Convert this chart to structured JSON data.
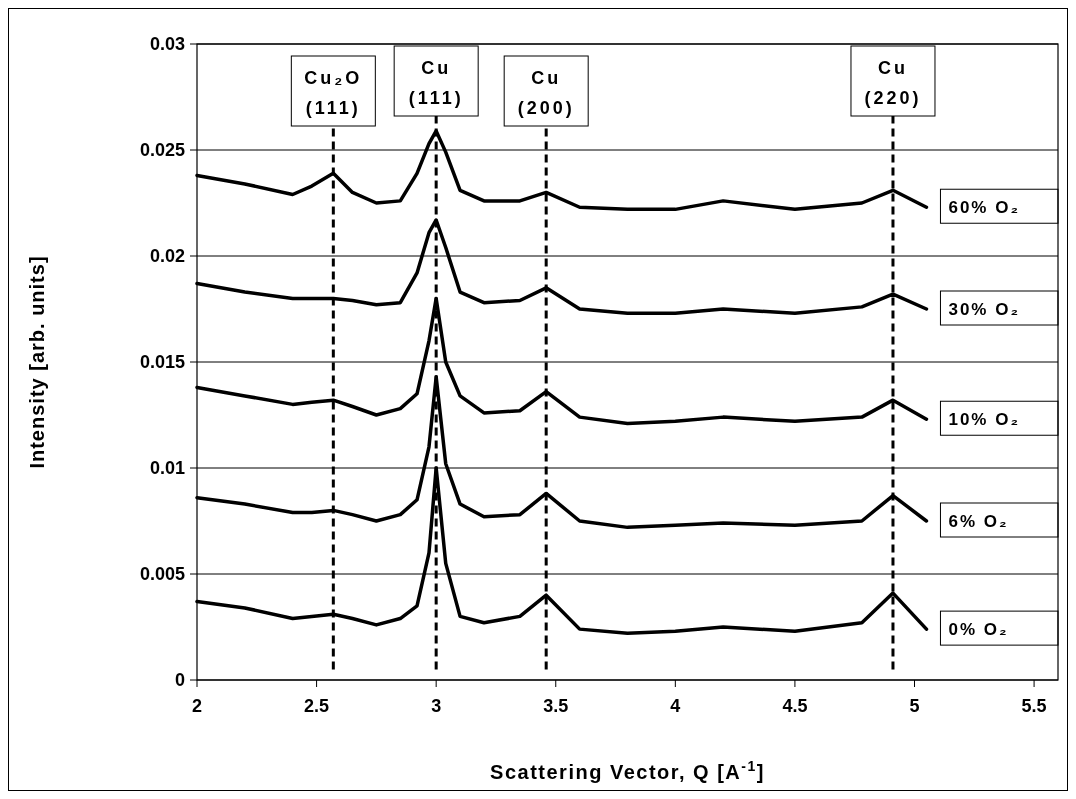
{
  "chart_data": {
    "type": "line",
    "xlabel": "Scattering Vector, Q [A$^{-1}$]",
    "ylabel": "Intensity [arb. units]",
    "xlim": [
      2,
      5.6
    ],
    "xticks": [
      2,
      2.5,
      3,
      3.5,
      4,
      4.5,
      5,
      5.5
    ],
    "ylim": [
      0,
      0.03
    ],
    "yticks": [
      0,
      0.005,
      0.01,
      0.015,
      0.02,
      0.025,
      0.03
    ],
    "grid": "y",
    "legend": false,
    "line_style": "solid",
    "marker": "none",
    "x": [
      2.0,
      2.2,
      2.4,
      2.48,
      2.57,
      2.65,
      2.75,
      2.85,
      2.92,
      2.97,
      3.0,
      3.04,
      3.1,
      3.2,
      3.35,
      3.46,
      3.6,
      3.8,
      4.0,
      4.2,
      4.5,
      4.78,
      4.91,
      5.05
    ],
    "series": [
      {
        "name": "60% O₂",
        "color": "#000000",
        "values": [
          0.0238,
          0.0234,
          0.0229,
          0.0233,
          0.0239,
          0.023,
          0.0225,
          0.0226,
          0.0239,
          0.0253,
          0.0259,
          0.0249,
          0.0231,
          0.0226,
          0.0226,
          0.023,
          0.0223,
          0.0222,
          0.0222,
          0.0226,
          0.0222,
          0.0225,
          0.0231,
          0.0223
        ]
      },
      {
        "name": "30% O₂",
        "color": "#000000",
        "values": [
          0.0187,
          0.0183,
          0.018,
          0.018,
          0.018,
          0.0179,
          0.0177,
          0.0178,
          0.0192,
          0.0211,
          0.0217,
          0.0204,
          0.0183,
          0.0178,
          0.0179,
          0.0185,
          0.0175,
          0.0173,
          0.0173,
          0.0175,
          0.0173,
          0.0176,
          0.0182,
          0.0175
        ]
      },
      {
        "name": "10% O₂",
        "color": "#000000",
        "values": [
          0.0138,
          0.0134,
          0.013,
          0.0131,
          0.0132,
          0.0129,
          0.0125,
          0.0128,
          0.0135,
          0.016,
          0.018,
          0.015,
          0.0134,
          0.0126,
          0.0127,
          0.0136,
          0.0124,
          0.0121,
          0.0122,
          0.0124,
          0.0122,
          0.0124,
          0.0132,
          0.0123
        ]
      },
      {
        "name": "6% O₂",
        "color": "#000000",
        "values": [
          0.0086,
          0.0083,
          0.0079,
          0.0079,
          0.008,
          0.0078,
          0.0075,
          0.0078,
          0.0085,
          0.011,
          0.0143,
          0.0102,
          0.0083,
          0.0077,
          0.0078,
          0.0088,
          0.0075,
          0.0072,
          0.0073,
          0.0074,
          0.0073,
          0.0075,
          0.0087,
          0.0075
        ]
      },
      {
        "name": "0% O₂",
        "color": "#000000",
        "values": [
          0.0037,
          0.0034,
          0.0029,
          0.003,
          0.0031,
          0.0029,
          0.0026,
          0.0029,
          0.0035,
          0.006,
          0.01,
          0.0055,
          0.003,
          0.0027,
          0.003,
          0.004,
          0.0024,
          0.0022,
          0.0023,
          0.0025,
          0.0023,
          0.0027,
          0.0041,
          0.0024
        ]
      }
    ],
    "ref_lines": [
      {
        "axis": "x",
        "value": 2.57,
        "label": "Cu₂O (111)",
        "line_style": "dashed"
      },
      {
        "axis": "x",
        "value": 3.0,
        "label": "Cu (111)",
        "line_style": "dashed"
      },
      {
        "axis": "x",
        "value": 3.46,
        "label": "Cu (200)",
        "line_style": "dashed"
      },
      {
        "axis": "x",
        "value": 4.91,
        "label": "Cu (220)",
        "line_style": "dashed"
      }
    ]
  }
}
